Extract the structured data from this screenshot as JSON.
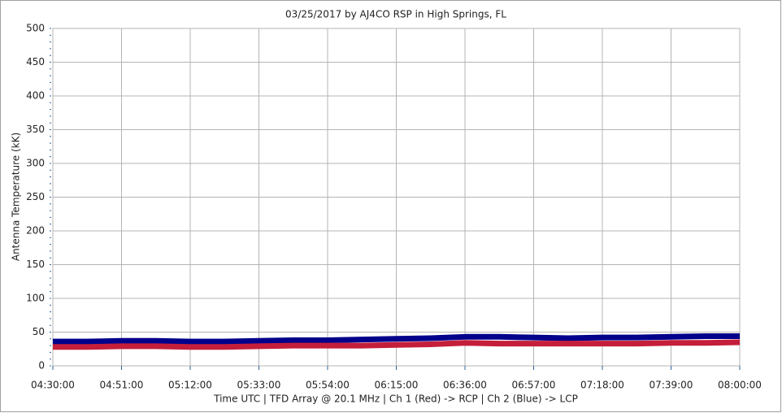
{
  "chart_data": {
    "type": "line",
    "title": "03/25/2017  by  AJ4CO RSP  in  High Springs, FL",
    "ylabel": "Antenna Temperature (kK)",
    "xlabel": "Time UTC    |    TFD Array @ 20.1 MHz    |    Ch 1 (Red) -> RCP    |    Ch 2 (Blue)  -> LCP",
    "x": [
      "04:30:00",
      "04:40:30",
      "04:51:00",
      "05:01:30",
      "05:12:00",
      "05:22:30",
      "05:33:00",
      "05:43:30",
      "05:54:00",
      "06:04:30",
      "06:15:00",
      "06:25:30",
      "06:36:00",
      "06:46:30",
      "06:57:00",
      "07:07:30",
      "07:18:00",
      "07:28:30",
      "07:39:00",
      "07:49:30",
      "08:00:00"
    ],
    "series": [
      {
        "name": "Ch 2 (Blue)",
        "color": "#00008b",
        "values": [
          36,
          36,
          37,
          37,
          36,
          36,
          37,
          38,
          38,
          39,
          40,
          41,
          43,
          43,
          42,
          41,
          42,
          42,
          43,
          44,
          44
        ]
      },
      {
        "name": "Ch 1 (Red)",
        "color": "#c41e3a",
        "values": [
          28,
          28,
          29,
          29,
          28,
          28,
          29,
          30,
          30,
          30,
          31,
          32,
          34,
          33,
          33,
          33,
          33,
          33,
          34,
          34,
          35
        ]
      }
    ],
    "xlim": [
      "04:30:00",
      "08:00:00"
    ],
    "xticks": [
      "04:30:00",
      "04:51:00",
      "05:12:00",
      "05:33:00",
      "05:54:00",
      "06:15:00",
      "06:36:00",
      "06:57:00",
      "07:18:00",
      "07:39:00",
      "08:00:00"
    ],
    "ylim": [
      0,
      500
    ],
    "yticks": [
      0,
      50,
      100,
      150,
      200,
      250,
      300,
      350,
      400,
      450,
      500
    ],
    "grid": true
  }
}
